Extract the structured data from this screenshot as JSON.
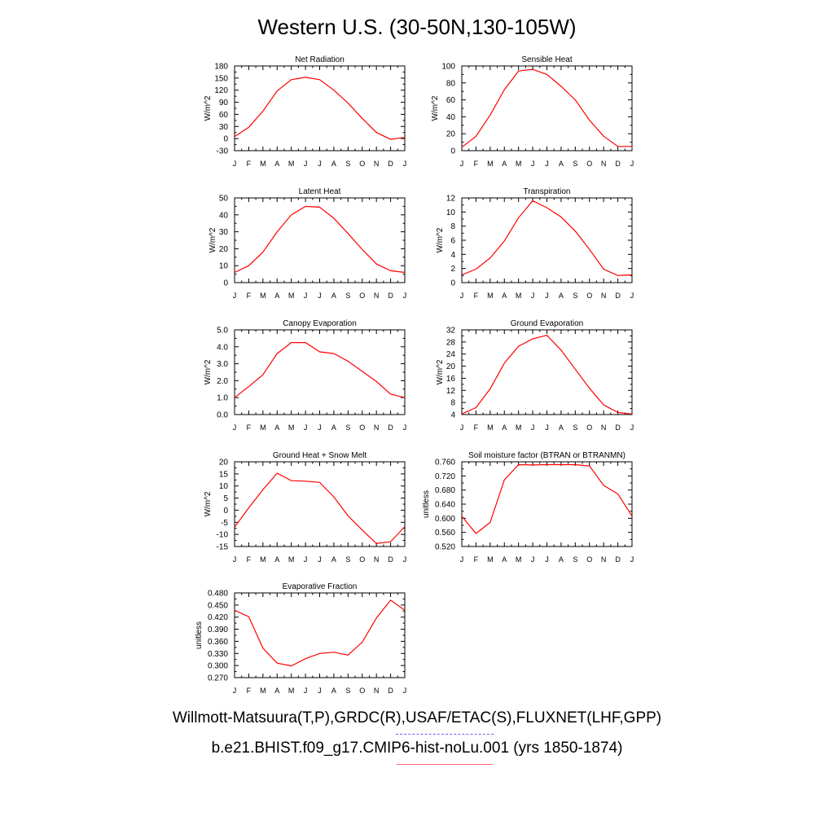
{
  "figure": {
    "title": "Western U.S. (30-50N,130-105W)",
    "legend": {
      "observations": "Willmott-Matsuura(T,P),GRDC(R),USAF/ETAC(S),FLUXNET(LHF,GPP)",
      "model": "b.e21.BHIST.f09_g17.CMIP6-hist-noLu.001 (yrs 1850-1874)"
    },
    "colors": {
      "model_line": "#ff0000",
      "obs_legend": "#6666ff",
      "model_legend": "#ff6666"
    }
  },
  "chart_data": [
    {
      "type": "line",
      "title": "Net Radiation",
      "ylabel": "W/m^2",
      "categories": [
        "J",
        "F",
        "M",
        "A",
        "M",
        "J",
        "J",
        "A",
        "S",
        "O",
        "N",
        "D",
        "J"
      ],
      "ylim": [
        -30,
        180
      ],
      "yticks": [
        "-30",
        "0",
        "30",
        "60",
        "90",
        "120",
        "150",
        "180"
      ],
      "series": [
        {
          "values": [
            5,
            28,
            68,
            118,
            146,
            152,
            146,
            120,
            88,
            50,
            15,
            -2,
            3
          ]
        }
      ]
    },
    {
      "type": "line",
      "title": "Sensible Heat",
      "ylabel": "W/m^2",
      "categories": [
        "J",
        "F",
        "M",
        "A",
        "M",
        "J",
        "J",
        "A",
        "S",
        "O",
        "N",
        "D",
        "J"
      ],
      "ylim": [
        0,
        100
      ],
      "yticks": [
        "0",
        "20",
        "40",
        "60",
        "80",
        "100"
      ],
      "series": [
        {
          "values": [
            4,
            17,
            42,
            72,
            94,
            96,
            90,
            76,
            60,
            36,
            17,
            5,
            5
          ]
        }
      ]
    },
    {
      "type": "line",
      "title": "Latent Heat",
      "ylabel": "W/m^2",
      "categories": [
        "J",
        "F",
        "M",
        "A",
        "M",
        "J",
        "J",
        "A",
        "S",
        "O",
        "N",
        "D",
        "J"
      ],
      "ylim": [
        0,
        50
      ],
      "yticks": [
        "0",
        "10",
        "20",
        "30",
        "40",
        "50"
      ],
      "series": [
        {
          "values": [
            6,
            10,
            18,
            30,
            40,
            45,
            44.5,
            38,
            29,
            19.5,
            11,
            7,
            6
          ]
        }
      ]
    },
    {
      "type": "line",
      "title": "Transpiration",
      "ylabel": "W/m^2",
      "categories": [
        "J",
        "F",
        "M",
        "A",
        "M",
        "J",
        "J",
        "A",
        "S",
        "O",
        "N",
        "D",
        "J"
      ],
      "ylim": [
        0,
        12
      ],
      "yticks": [
        "0",
        "2",
        "4",
        "6",
        "8",
        "10",
        "12"
      ],
      "series": [
        {
          "values": [
            1.1,
            1.9,
            3.5,
            5.9,
            9.2,
            11.6,
            10.6,
            9.3,
            7.3,
            4.7,
            1.9,
            1.0,
            1.1
          ]
        }
      ]
    },
    {
      "type": "line",
      "title": "Canopy Evaporation",
      "ylabel": "W/m^2",
      "categories": [
        "J",
        "F",
        "M",
        "A",
        "M",
        "J",
        "J",
        "A",
        "S",
        "O",
        "N",
        "D",
        "J"
      ],
      "ylim": [
        0,
        5
      ],
      "yticks": [
        "0.0",
        "1.0",
        "2.0",
        "3.0",
        "4.0",
        "5.0"
      ],
      "series": [
        {
          "values": [
            1.0,
            1.65,
            2.35,
            3.6,
            4.25,
            4.25,
            3.7,
            3.6,
            3.15,
            2.55,
            1.95,
            1.2,
            1.0
          ]
        }
      ]
    },
    {
      "type": "line",
      "title": "Ground Evaporation",
      "ylabel": "W/m^2",
      "categories": [
        "J",
        "F",
        "M",
        "A",
        "M",
        "J",
        "J",
        "A",
        "S",
        "O",
        "N",
        "D",
        "J"
      ],
      "ylim": [
        4,
        32
      ],
      "yticks": [
        "4",
        "8",
        "12",
        "16",
        "20",
        "24",
        "28",
        "32"
      ],
      "series": [
        {
          "values": [
            4.2,
            6.3,
            12.5,
            21,
            26.6,
            29,
            30.2,
            25.3,
            19,
            12.7,
            7.2,
            4.7,
            4.2
          ]
        }
      ]
    },
    {
      "type": "line",
      "title": "Ground Heat + Snow Melt",
      "ylabel": "W/m^2",
      "categories": [
        "J",
        "F",
        "M",
        "A",
        "M",
        "J",
        "J",
        "A",
        "S",
        "O",
        "N",
        "D",
        "J"
      ],
      "ylim": [
        -15,
        20
      ],
      "yticks": [
        "-15",
        "-10",
        "-5",
        "0",
        "5",
        "10",
        "15",
        "20"
      ],
      "series": [
        {
          "values": [
            -7,
            1,
            8.5,
            15.3,
            12.2,
            12,
            11.5,
            5.5,
            -2.3,
            -8.2,
            -13.8,
            -13,
            -6.8
          ]
        }
      ]
    },
    {
      "type": "line",
      "title": "Soil moisture factor (BTRAN or BTRANMN)",
      "ylabel": "unitless",
      "categories": [
        "J",
        "F",
        "M",
        "A",
        "M",
        "J",
        "J",
        "A",
        "S",
        "O",
        "N",
        "D",
        "J"
      ],
      "ylim": [
        0.52,
        0.76
      ],
      "yticks": [
        "0.520",
        "0.560",
        "0.600",
        "0.640",
        "0.680",
        "0.720",
        "0.760"
      ],
      "series": [
        {
          "values": [
            0.606,
            0.557,
            0.588,
            0.709,
            0.752,
            0.751,
            0.752,
            0.752,
            0.752,
            0.748,
            0.693,
            0.669,
            0.606
          ]
        }
      ]
    },
    {
      "type": "line",
      "title": "Evaporative Fraction",
      "ylabel": "unitless",
      "categories": [
        "J",
        "F",
        "M",
        "A",
        "M",
        "J",
        "J",
        "A",
        "S",
        "O",
        "N",
        "D",
        "J"
      ],
      "ylim": [
        0.27,
        0.48
      ],
      "yticks": [
        "0.270",
        "0.300",
        "0.330",
        "0.360",
        "0.390",
        "0.420",
        "0.450",
        "0.480"
      ],
      "series": [
        {
          "values": [
            0.437,
            0.421,
            0.343,
            0.306,
            0.299,
            0.317,
            0.33,
            0.333,
            0.326,
            0.358,
            0.418,
            0.462,
            0.437
          ]
        }
      ]
    }
  ]
}
